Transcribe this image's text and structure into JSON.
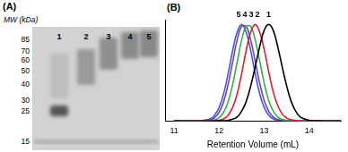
{
  "gel": {
    "panel_label": "(A)",
    "axis_label": "MW (kDa)",
    "mw_ticks": [
      85,
      70,
      60,
      50,
      40,
      30,
      25,
      15
    ],
    "lanes": [
      "1",
      "2",
      "3",
      "4",
      "5"
    ]
  },
  "chart_data": {
    "type": "line",
    "panel_label": "(B)",
    "x_label": "Retention Volume (mL)",
    "x": [
      11.0,
      11.5,
      11.8,
      11.9,
      12.0,
      12.1,
      12.2,
      12.3,
      12.4,
      12.5,
      12.6,
      12.7,
      12.8,
      12.9,
      13.0,
      13.1,
      13.2,
      13.3,
      13.4,
      13.5,
      13.6,
      13.7,
      13.8,
      14.0,
      14.3,
      14.7
    ],
    "series": [
      {
        "name": "1",
        "color": "#000000",
        "values": [
          0,
          0,
          0,
          0,
          0.001,
          0.002,
          0.006,
          0.017,
          0.04,
          0.1,
          0.2,
          0.36,
          0.56,
          0.77,
          0.94,
          1,
          0.94,
          0.77,
          0.56,
          0.36,
          0.2,
          0.1,
          0.04,
          0.006,
          0,
          0
        ]
      },
      {
        "name": "2",
        "color": "#e0202a",
        "values": [
          0,
          0,
          0,
          0.002,
          0.006,
          0.02,
          0.06,
          0.14,
          0.28,
          0.49,
          0.73,
          0.92,
          1,
          0.92,
          0.74,
          0.51,
          0.3,
          0.16,
          0.07,
          0.03,
          0.01,
          0.004,
          0,
          0,
          0,
          0
        ]
      },
      {
        "name": "3",
        "color": "#33b24a",
        "values": [
          0,
          0,
          0.003,
          0.011,
          0.034,
          0.09,
          0.2,
          0.38,
          0.61,
          0.84,
          0.98,
          0.98,
          0.84,
          0.62,
          0.39,
          0.21,
          0.1,
          0.04,
          0.015,
          0.005,
          0,
          0,
          0,
          0,
          0,
          0
        ]
      },
      {
        "name": "4",
        "color": "#7b3fb5",
        "values": [
          0,
          0,
          0.011,
          0.034,
          0.09,
          0.2,
          0.38,
          0.61,
          0.84,
          0.98,
          0.98,
          0.84,
          0.62,
          0.39,
          0.21,
          0.1,
          0.04,
          0.015,
          0.005,
          0,
          0,
          0,
          0,
          0,
          0,
          0
        ]
      },
      {
        "name": "5",
        "color": "#3b5bdb",
        "values": [
          0,
          0,
          0.02,
          0.06,
          0.14,
          0.28,
          0.49,
          0.73,
          0.92,
          1,
          0.92,
          0.73,
          0.49,
          0.28,
          0.14,
          0.06,
          0.02,
          0.006,
          0.002,
          0,
          0,
          0,
          0,
          0,
          0,
          0
        ]
      }
    ],
    "xlim": [
      10.8,
      14.7
    ],
    "xticks": [
      11,
      12,
      13,
      14
    ],
    "ylim": [
      0,
      1.05
    ],
    "grid": false,
    "tick_labels": "x",
    "annotations": [
      {
        "text": "5",
        "x": 12.43
      },
      {
        "text": "4",
        "x": 12.57
      },
      {
        "text": "3",
        "x": 12.71
      },
      {
        "text": "2",
        "x": 12.85
      },
      {
        "text": "1",
        "x": 13.1
      }
    ]
  }
}
